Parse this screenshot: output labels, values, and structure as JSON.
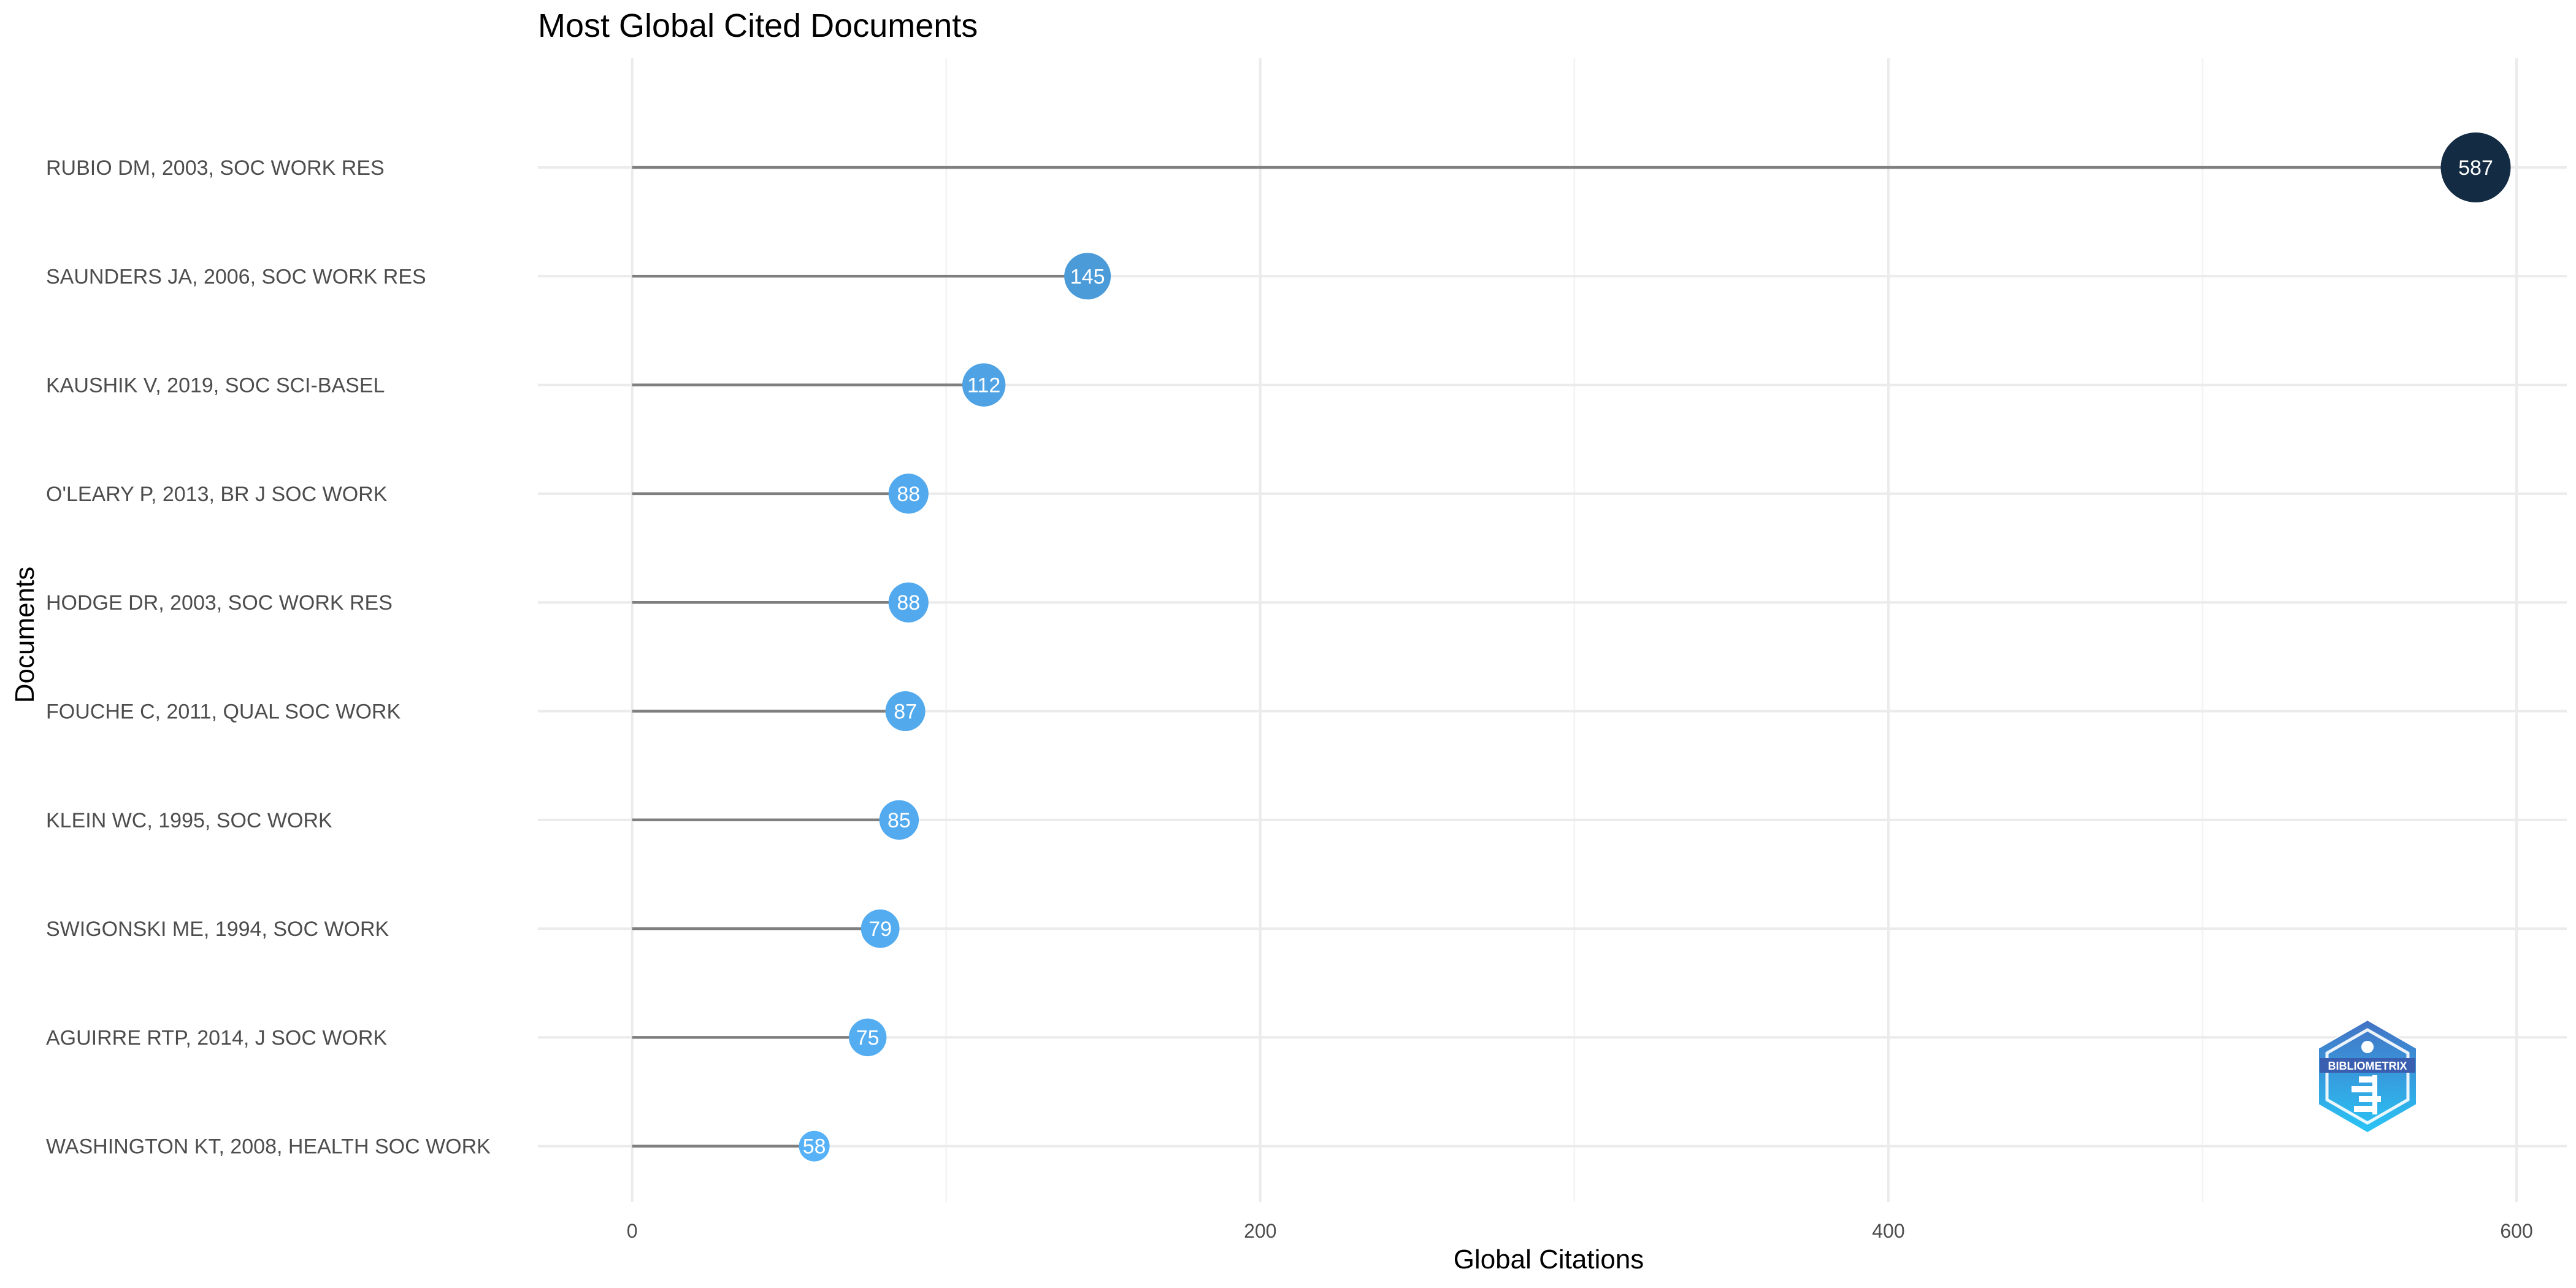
{
  "chart_data": {
    "type": "lollipop",
    "title": "Most Global Cited Documents",
    "xlabel": "Global Citations",
    "ylabel": "Documents",
    "xlim": [
      -30,
      616
    ],
    "xticks": [
      0,
      200,
      400,
      600
    ],
    "x_minor_ticks": [
      100,
      300,
      500
    ],
    "grid": true,
    "legend": "none",
    "categories": [
      "RUBIO DM, 2003, SOC WORK RES",
      "SAUNDERS JA, 2006, SOC WORK RES",
      "KAUSHIK V, 2019, SOC SCI-BASEL",
      "O'LEARY P, 2013, BR J SOC WORK",
      "HODGE DR, 2003, SOC WORK RES",
      "FOUCHE C, 2011, QUAL SOC WORK",
      "KLEIN WC, 1995, SOC WORK",
      "SWIGONSKI ME, 1994, SOC WORK",
      "AGUIRRE RTP, 2014, J SOC WORK",
      "WASHINGTON KT, 2008, HEALTH SOC WORK"
    ],
    "values": [
      587,
      145,
      112,
      88,
      88,
      87,
      85,
      79,
      75,
      58
    ],
    "colors": {
      "stem": "#7f7f7f",
      "high": "#132b43",
      "low": "#56b1f7",
      "grid": "#ebebeb"
    }
  },
  "logo": {
    "text": "BIBLIOMETRIX",
    "colors": {
      "top": "#4472c4",
      "bottom": "#29c5f6"
    }
  }
}
